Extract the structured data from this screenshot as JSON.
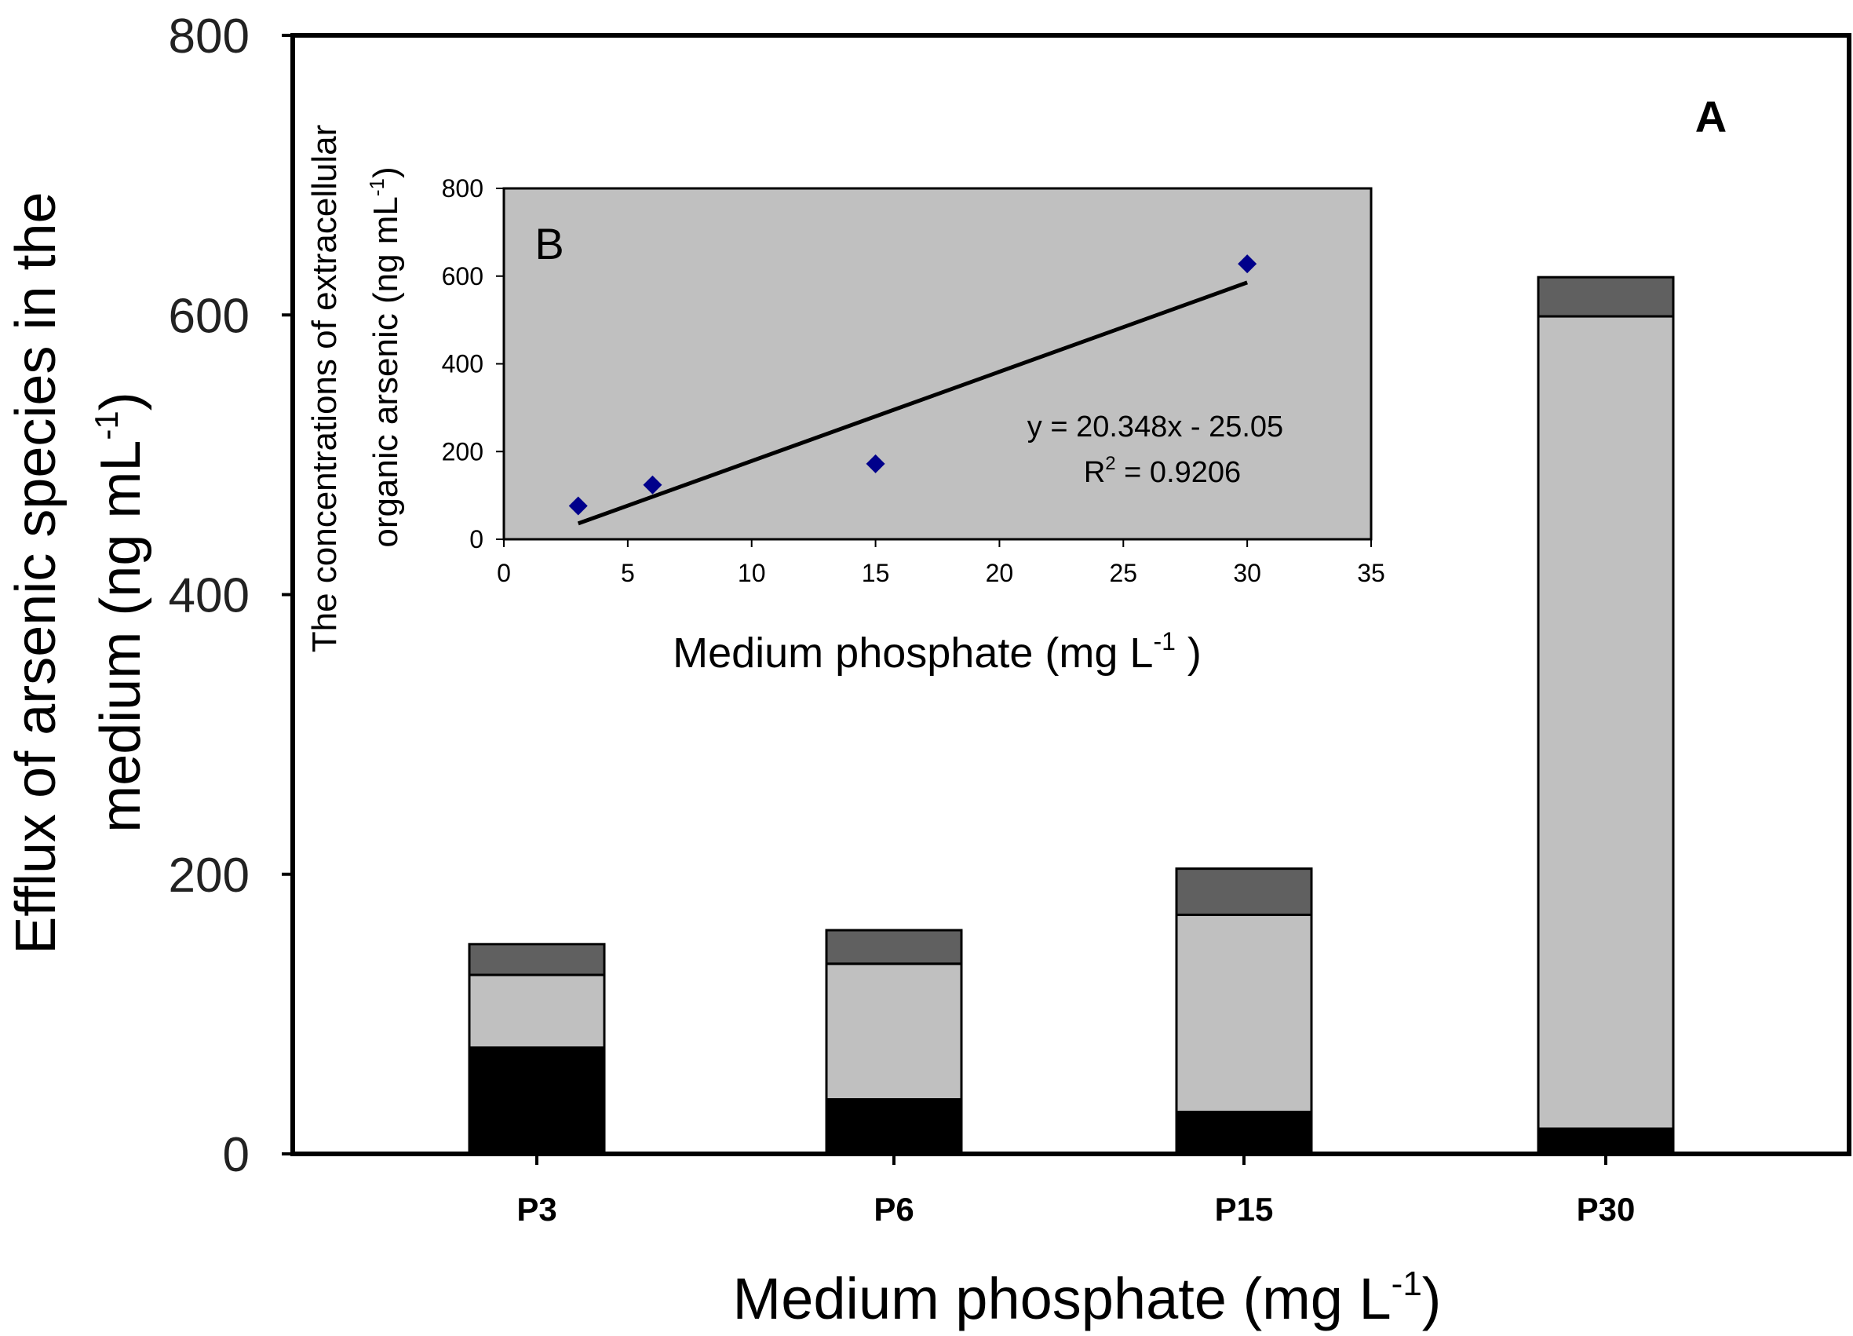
{
  "chart_data": [
    {
      "id": "A",
      "type": "bar",
      "stacked": true,
      "panel_label": "A",
      "categories": [
        "P3",
        "P6",
        "P15",
        "P30"
      ],
      "series": [
        {
          "name": "bottom segment",
          "color": "#000000",
          "values": [
            76,
            39,
            30,
            18
          ]
        },
        {
          "name": "middle segment",
          "color": "#c0c0c0",
          "values": [
            52,
            97,
            141,
            581
          ]
        },
        {
          "name": "top segment",
          "color": "#606060",
          "values": [
            22,
            24,
            33,
            28
          ]
        }
      ],
      "xlabel": "Medium phosphate (mg L",
      "xlabel_sup": "-1",
      "xlabel_end": ")",
      "ylabel_line1": "Efflux of arsenic species  in the",
      "ylabel_line2": "medium    (ng mL",
      "ylabel_sup": "-1",
      "ylabel_end": ")",
      "ylim": [
        0,
        800
      ],
      "yticks": [
        "0",
        "200",
        "400",
        "600",
        "800"
      ],
      "grid": false
    },
    {
      "id": "B",
      "type": "scatter",
      "panel_label": "B",
      "points": [
        {
          "x": 3,
          "y": 76
        },
        {
          "x": 6,
          "y": 124
        },
        {
          "x": 15,
          "y": 172
        },
        {
          "x": 30,
          "y": 628
        }
      ],
      "trendline": {
        "slope": 20.348,
        "intercept": -25.05,
        "x_range": [
          3,
          30
        ]
      },
      "equation": "y = 20.348x - 25.05",
      "r2_label": "R",
      "r2_sup": "2",
      "r2_value": " = 0.9206",
      "xlabel": "Medium phosphate (mg L",
      "xlabel_sup": "-1",
      "xlabel_end": " )",
      "ylabel_line1": "The concentrations of  extracellular",
      "ylabel_line2": "organic arsenic (ng mL",
      "ylabel_sup": "-1",
      "ylabel_end": ")",
      "xlim": [
        0,
        35
      ],
      "ylim": [
        0,
        800
      ],
      "xticks": [
        "0",
        "5",
        "10",
        "15",
        "20",
        "25",
        "30",
        "35"
      ],
      "yticks": [
        "0",
        "200",
        "400",
        "600",
        "800"
      ],
      "marker_color": "#00008b",
      "background_color": "#c0c0c0",
      "grid": false
    }
  ]
}
